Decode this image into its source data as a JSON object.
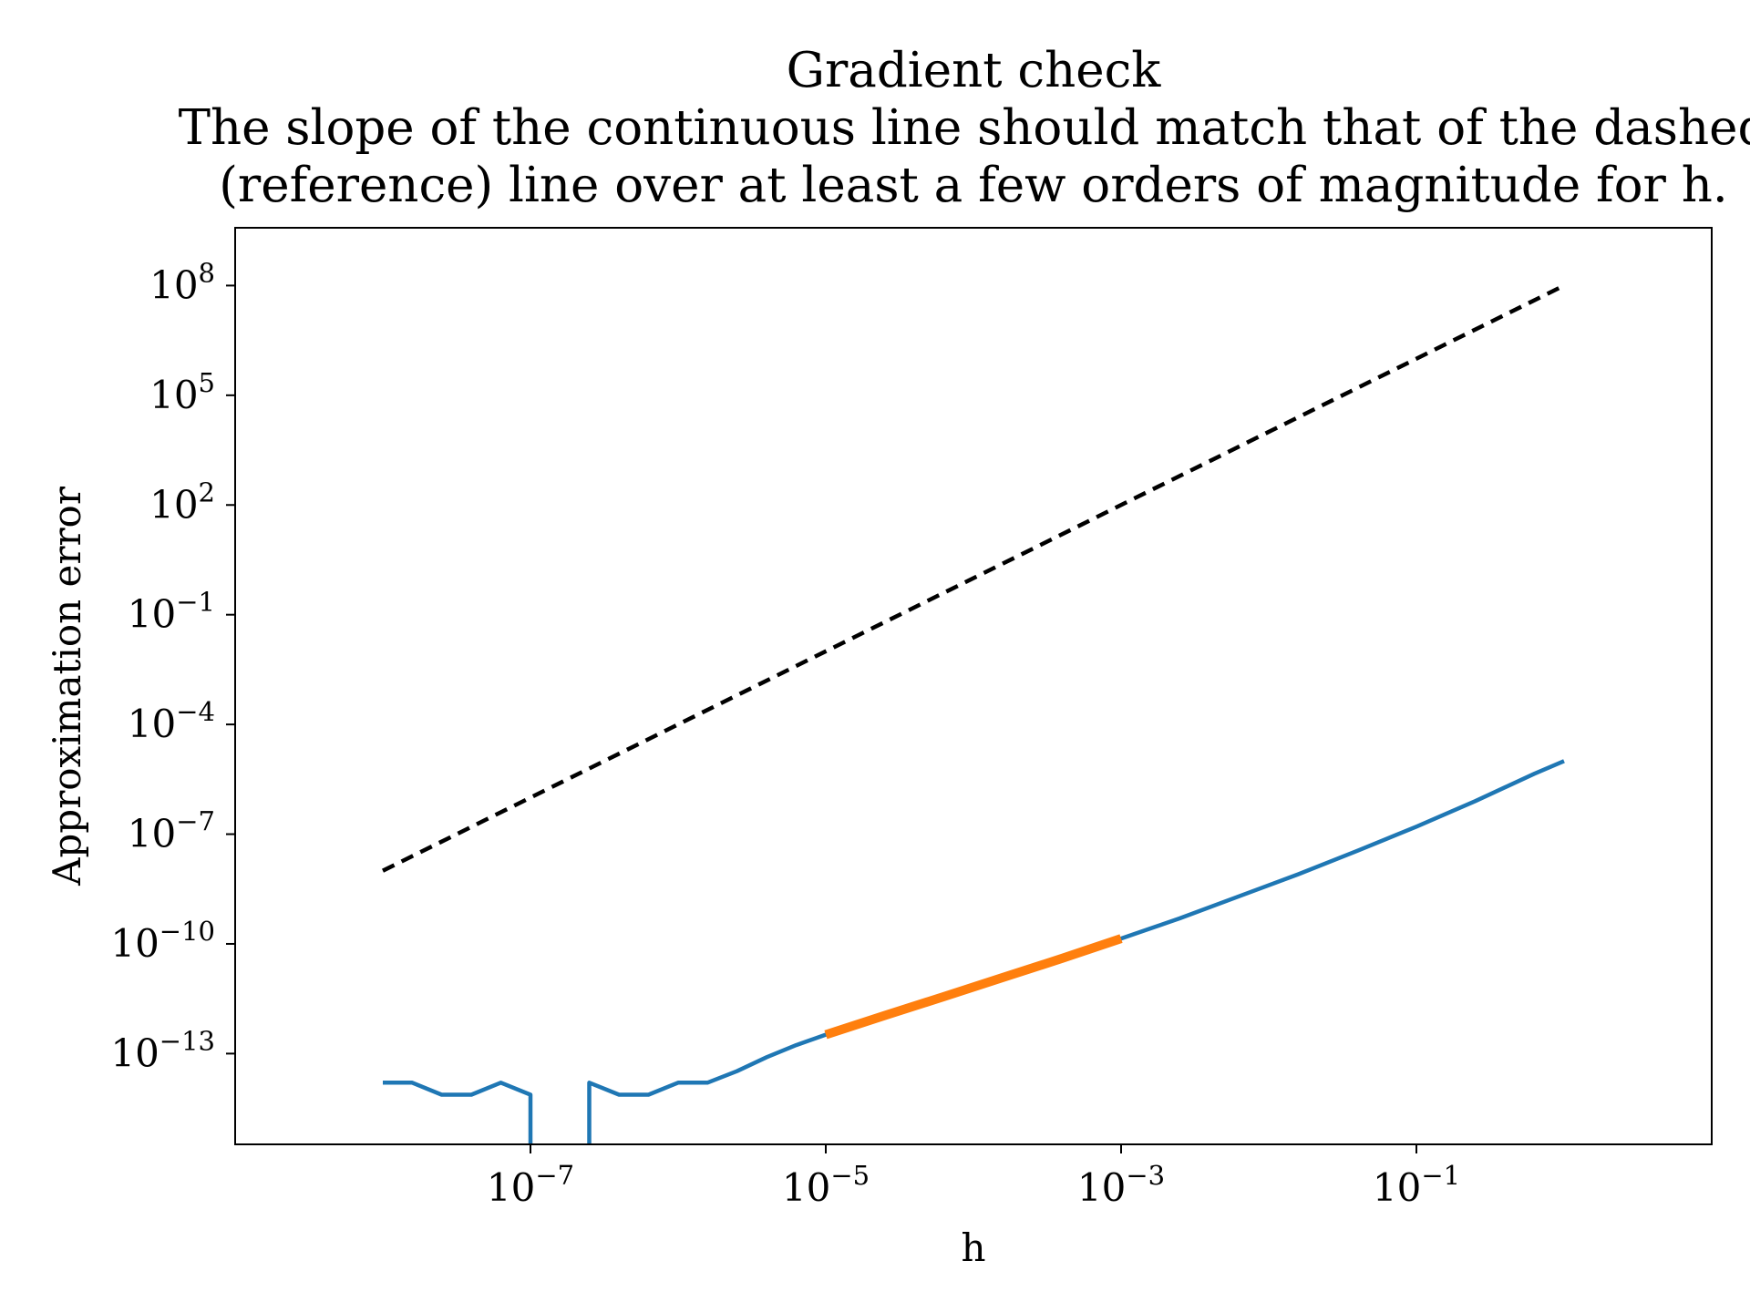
{
  "chart_data": {
    "type": "line",
    "title": "Gradient check",
    "subtitle_lines": [
      "The slope of the continuous line should match that of the dashed",
      "(reference) line over at least a few orders of magnitude for h."
    ],
    "xlabel": "h",
    "ylabel": "Approximation error",
    "xscale": "log",
    "yscale": "log",
    "xlim": [
      1e-09,
      10
    ],
    "ylim": [
      3.3e-16,
      3800000000.0
    ],
    "xticks": [
      {
        "base": "10",
        "exp": "−7",
        "value": 1e-07
      },
      {
        "base": "10",
        "exp": "−5",
        "value": 1e-05
      },
      {
        "base": "10",
        "exp": "−3",
        "value": 0.001
      },
      {
        "base": "10",
        "exp": "−1",
        "value": 0.1
      }
    ],
    "yticks": [
      {
        "base": "10",
        "exp": "8",
        "value": 100000000.0
      },
      {
        "base": "10",
        "exp": "5",
        "value": 100000.0
      },
      {
        "base": "10",
        "exp": "2",
        "value": 100.0
      },
      {
        "base": "10",
        "exp": "−1",
        "value": 0.1
      },
      {
        "base": "10",
        "exp": "−4",
        "value": 0.0001
      },
      {
        "base": "10",
        "exp": "−7",
        "value": 1e-07
      },
      {
        "base": "10",
        "exp": "−10",
        "value": 1e-10
      },
      {
        "base": "10",
        "exp": "−13",
        "value": 1e-13
      }
    ],
    "grid": false,
    "series": [
      {
        "role": "reference",
        "color": "#000000",
        "style": "dashed",
        "x": [
          1e-08,
          1
        ],
        "y": [
          1e-08,
          100000000.0
        ]
      },
      {
        "role": "error",
        "color": "#1f77b4",
        "style": "solid",
        "x": [
          1e-08,
          1.58e-08,
          2.5e-08,
          3.98e-08,
          6.3e-08,
          1e-07,
          1.58e-07,
          2.5e-07,
          3.98e-07,
          6.3e-07,
          1e-06,
          1.58e-06,
          2.5e-06,
          3.98e-06,
          6.3e-06,
          1e-05,
          2.5e-05,
          6.3e-05,
          0.000158,
          0.000398,
          0.001,
          0.0025,
          0.0063,
          0.0158,
          0.0398,
          0.1,
          0.25,
          0.63,
          1
        ],
        "y": [
          1.6e-14,
          1.6e-14,
          7.5e-15,
          7.5e-15,
          1.6e-14,
          7.5e-15,
          null,
          1.6e-14,
          7.5e-15,
          7.5e-15,
          1.6e-14,
          1.6e-14,
          3.3e-14,
          8e-14,
          1.7e-13,
          3.3e-13,
          1.1e-12,
          3.6e-12,
          1.2e-11,
          4e-11,
          1.4e-10,
          5e-10,
          2e-09,
          8e-09,
          3.5e-08,
          1.6e-07,
          8e-07,
          4.5e-06,
          1e-05
        ]
      },
      {
        "role": "highlight",
        "color": "#ff7f0e",
        "style": "solid",
        "x": [
          1e-05,
          2.5e-05,
          6.3e-05,
          0.000158,
          0.000398,
          0.001
        ],
        "y": [
          3.3e-13,
          1.1e-12,
          3.6e-12,
          1.2e-11,
          4e-11,
          1.4e-10
        ]
      }
    ]
  }
}
